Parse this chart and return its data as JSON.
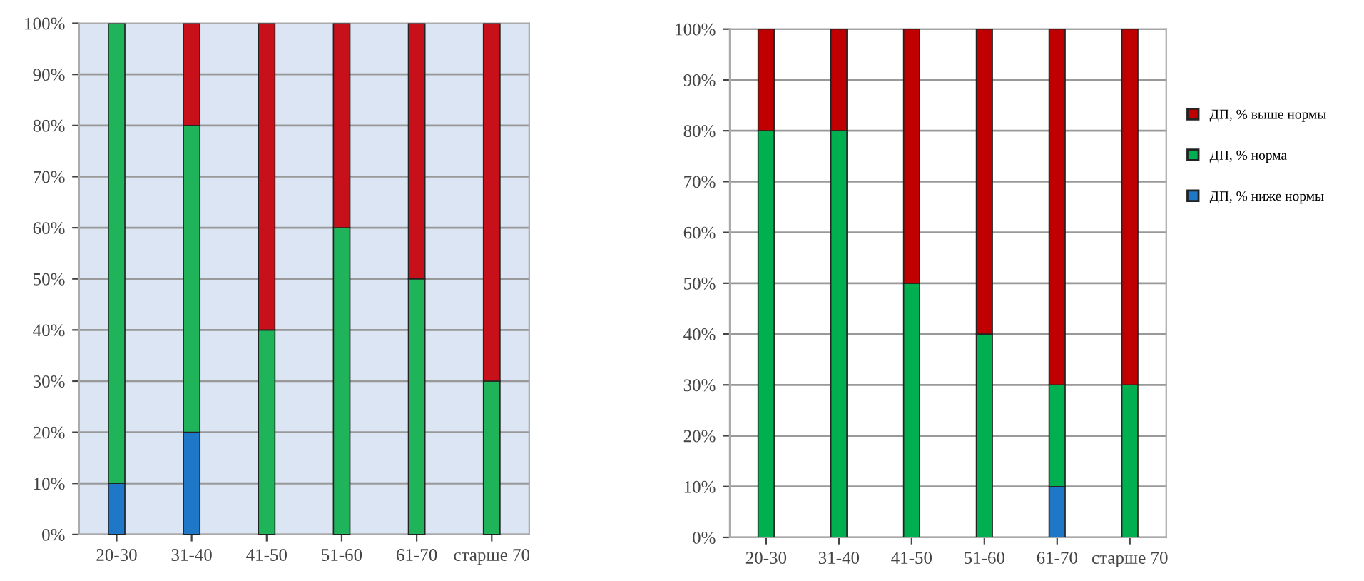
{
  "chart_data": [
    {
      "type": "bar",
      "stacked": true,
      "categories": [
        "20-30",
        "31-40",
        "41-50",
        "51-60",
        "61-70",
        "старше 70"
      ],
      "series": [
        {
          "color": "#1f77c8",
          "values": [
            10,
            20,
            0,
            0,
            0,
            0
          ]
        },
        {
          "color": "#1fb35a",
          "values": [
            90,
            60,
            40,
            60,
            50,
            30
          ]
        },
        {
          "color": "#c8101a",
          "values": [
            0,
            20,
            60,
            40,
            50,
            70
          ]
        }
      ],
      "ylim": [
        0,
        100
      ],
      "yticks": [
        {
          "value": 0,
          "label": "0%"
        },
        {
          "value": 10,
          "label": "10%"
        },
        {
          "value": 20,
          "label": "20%"
        },
        {
          "value": 30,
          "label": "30%"
        },
        {
          "value": 40,
          "label": "40%"
        },
        {
          "value": 50,
          "label": "50%"
        },
        {
          "value": 60,
          "label": "60%"
        },
        {
          "value": 70,
          "label": "70%"
        },
        {
          "value": 80,
          "label": "80%"
        },
        {
          "value": 90,
          "label": "90%"
        },
        {
          "value": 100,
          "label": "100%"
        }
      ],
      "grid": "y",
      "legend": false
    },
    {
      "type": "bar",
      "stacked": true,
      "categories": [
        "20-30",
        "31-40",
        "41-50",
        "51-60",
        "61-70",
        "старше 70"
      ],
      "series": [
        {
          "name": "ДП, % ниже нормы",
          "color": "#1f77c8",
          "values": [
            0,
            0,
            0,
            0,
            10,
            0
          ]
        },
        {
          "name": "ДП, % норма",
          "color": "#00b050",
          "values": [
            80,
            80,
            50,
            40,
            20,
            30
          ]
        },
        {
          "name": "ДП, % выше нормы",
          "color": "#c00000",
          "values": [
            20,
            20,
            50,
            60,
            70,
            70
          ]
        }
      ],
      "ylim": [
        0,
        100
      ],
      "yticks": [
        {
          "value": 0,
          "label": "0%"
        },
        {
          "value": 10,
          "label": "10%"
        },
        {
          "value": 20,
          "label": "20%"
        },
        {
          "value": 30,
          "label": "30%"
        },
        {
          "value": 40,
          "label": "40%"
        },
        {
          "value": 50,
          "label": "50%"
        },
        {
          "value": 60,
          "label": "60%"
        },
        {
          "value": 70,
          "label": "70%"
        },
        {
          "value": 80,
          "label": "80%"
        },
        {
          "value": 90,
          "label": "90%"
        },
        {
          "value": 100,
          "label": "100%"
        }
      ],
      "grid": "y",
      "legend": "right"
    }
  ]
}
